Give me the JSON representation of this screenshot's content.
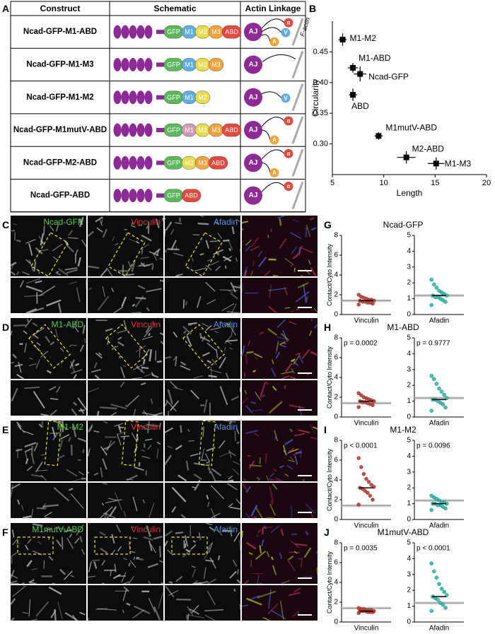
{
  "panels": [
    "A",
    "B",
    "C",
    "D",
    "E",
    "F",
    "G",
    "H",
    "I",
    "J"
  ],
  "table": {
    "headers": [
      "Construct",
      "Schematic",
      "Actin Linkage"
    ],
    "aj_label": "AJ",
    "f_actin_label": "F-actin",
    "rows": [
      {
        "construct": "Ncad-GFP-M1-ABD",
        "domains": [
          {
            "label": "GFP",
            "color": "#5cb85c"
          },
          {
            "label": "M1",
            "color": "#62aee0"
          },
          {
            "label": "M2",
            "color": "#e8dc4c"
          },
          {
            "label": "M3",
            "color": "#f2a33a"
          },
          {
            "label": "ABD",
            "color": "#e5483c"
          }
        ],
        "linkage": [
          {
            "label": "α",
            "color": "#e5483c"
          },
          {
            "label": "V",
            "color": "#62aee0"
          },
          {
            "label": "A",
            "color": "#f2a33a"
          }
        ]
      },
      {
        "construct": "Ncad-GFP-M1-M3",
        "domains": [
          {
            "label": "GFP",
            "color": "#5cb85c"
          },
          {
            "label": "M1",
            "color": "#62aee0"
          },
          {
            "label": "M2",
            "color": "#e8dc4c"
          },
          {
            "label": "M3",
            "color": "#f2a33a"
          }
        ],
        "linkage": []
      },
      {
        "construct": "Ncad-GFP-M1-M2",
        "domains": [
          {
            "label": "GFP",
            "color": "#5cb85c"
          },
          {
            "label": "M1",
            "color": "#62aee0"
          },
          {
            "label": "M2",
            "color": "#e8dc4c"
          }
        ],
        "linkage": [
          {
            "label": "V",
            "color": "#62aee0"
          }
        ]
      },
      {
        "construct": "Ncad-GFP-M1mutV-ABD",
        "domains": [
          {
            "label": "GFP",
            "color": "#5cb85c"
          },
          {
            "label": "M1",
            "color": "#d39ab8"
          },
          {
            "label": "M2",
            "color": "#e8dc4c"
          },
          {
            "label": "M3",
            "color": "#f2a33a"
          },
          {
            "label": "ABD",
            "color": "#e5483c"
          }
        ],
        "linkage": [
          {
            "label": "α",
            "color": "#e5483c"
          },
          {
            "label": "A",
            "color": "#f2a33a"
          }
        ]
      },
      {
        "construct": "Ncad-GFP-M2-ABD",
        "domains": [
          {
            "label": "GFP",
            "color": "#5cb85c"
          },
          {
            "label": "M2",
            "color": "#e8dc4c"
          },
          {
            "label": "M3",
            "color": "#f2a33a"
          },
          {
            "label": "ABD",
            "color": "#e5483c"
          }
        ],
        "linkage": [
          {
            "label": "α",
            "color": "#e5483c"
          },
          {
            "label": "A",
            "color": "#f2a33a"
          }
        ]
      },
      {
        "construct": "Ncad-GFP-ABD",
        "domains": [
          {
            "label": "GFP",
            "color": "#5cb85c"
          },
          {
            "label": "ABD",
            "color": "#e5483c"
          }
        ],
        "linkage": [
          {
            "label": "α",
            "color": "#e5483c"
          }
        ]
      }
    ]
  },
  "chart_data": {
    "type": "scatter",
    "xlabel": "Length",
    "ylabel": "Circularity",
    "labels": [
      "M1-M2",
      "M1-ABD",
      "Ncad-GFP",
      "ABD",
      "M1mutV-ABD",
      "M2-ABD",
      "M1-M3"
    ],
    "x": [
      6.0,
      7.0,
      7.7,
      7.0,
      9.5,
      12.2,
      15.1
    ],
    "y": [
      0.47,
      0.424,
      0.414,
      0.38,
      0.313,
      0.278,
      0.268
    ],
    "xerr": [
      0.4,
      0.5,
      0.6,
      0.4,
      0.4,
      0.9,
      0.8
    ],
    "yerr": [
      0.01,
      0.008,
      0.012,
      0.01,
      0.006,
      0.01,
      0.01
    ],
    "color": "#000000",
    "xlim": [
      5,
      20
    ],
    "ylim": [
      0.25,
      0.5
    ],
    "xticks": [
      5,
      10,
      15,
      20
    ],
    "yticks": [
      {
        "value": 0.3,
        "label": "0.30"
      },
      0.35,
      {
        "value": 0.4,
        "label": "0.40"
      },
      0.45
    ]
  },
  "micrographs": [
    {
      "channels": [
        "Ncad-GFP",
        "Vinculin",
        "Afadin"
      ]
    },
    {
      "channels": [
        "M1-ABD",
        "Vinculin",
        "Afadin"
      ]
    },
    {
      "channels": [
        "M1-M2",
        "Vinculin",
        "Afadin"
      ]
    },
    {
      "channels": [
        "M1mutV-ABD",
        "Vinculin",
        "Afadin"
      ]
    }
  ],
  "channel_colors": [
    "#4cd14c",
    "#e0303a",
    "#5a8ee8"
  ],
  "dot_plots": [
    {
      "title": "Ncad-GFP",
      "ylabel": "Contact/Cyto Intensity",
      "subplots": [
        {
          "label": "Vinculin",
          "color": "#c0392b",
          "ylim": [
            0,
            8
          ],
          "yticks": [
            0,
            2,
            4,
            6,
            8
          ],
          "median": 1.4,
          "reference": 1.4,
          "points": [
            1.0,
            1.1,
            1.2,
            1.2,
            1.3,
            1.3,
            1.4,
            1.4,
            1.5,
            1.5,
            1.6,
            1.7,
            1.8,
            2.0
          ]
        },
        {
          "label": "Afadin",
          "color": "#1fbfb0",
          "ylim": [
            0,
            5
          ],
          "yticks": [
            0,
            1,
            2,
            3,
            4,
            5
          ],
          "median": 1.2,
          "reference": 1.2,
          "points": [
            0.6,
            0.8,
            0.9,
            1.0,
            1.1,
            1.1,
            1.2,
            1.2,
            1.3,
            1.4,
            1.5,
            1.7,
            1.9,
            2.2
          ]
        }
      ]
    },
    {
      "title": "M1-ABD",
      "ylabel": "Contact/Cyto Intensity",
      "subplots": [
        {
          "label": "Vinculin",
          "p_value": "p = 0.0002",
          "color": "#c0392b",
          "ylim": [
            0,
            8
          ],
          "yticks": [
            0,
            2,
            4,
            6,
            8
          ],
          "median": 1.6,
          "reference": 1.4,
          "points": [
            1.0,
            1.2,
            1.3,
            1.4,
            1.5,
            1.5,
            1.6,
            1.6,
            1.7,
            1.8,
            1.9,
            2.0,
            2.2,
            2.4
          ]
        },
        {
          "label": "Afadin",
          "p_value": "p = 0.9777",
          "color": "#1fbfb0",
          "ylim": [
            0,
            5
          ],
          "yticks": [
            0,
            1,
            2,
            3,
            4,
            5
          ],
          "median": 1.1,
          "reference": 1.2,
          "points": [
            0.4,
            0.6,
            0.8,
            0.9,
            1.0,
            1.1,
            1.1,
            1.2,
            1.4,
            1.6,
            1.8,
            2.1,
            2.4,
            2.6
          ]
        }
      ]
    },
    {
      "title": "M1-M2",
      "ylabel": "Contact/Cyto Intensity",
      "subplots": [
        {
          "label": "Vinculin",
          "p_value": "p < 0.0001",
          "color": "#c0392b",
          "ylim": [
            0,
            8
          ],
          "yticks": [
            0,
            2,
            4,
            6,
            8
          ],
          "median": 3.2,
          "reference": 1.4,
          "points": [
            1.5,
            2.0,
            2.4,
            2.7,
            2.9,
            3.1,
            3.2,
            3.3,
            3.5,
            3.8,
            4.1,
            4.6,
            5.3,
            6.2
          ]
        },
        {
          "label": "Afadin",
          "p_value": "p = 0.0096",
          "color": "#1fbfb0",
          "ylim": [
            0,
            5
          ],
          "yticks": [
            0,
            1,
            2,
            3,
            4,
            5
          ],
          "median": 1.0,
          "reference": 1.2,
          "points": [
            0.6,
            0.7,
            0.8,
            0.9,
            0.9,
            1.0,
            1.0,
            1.0,
            1.1,
            1.1,
            1.2,
            1.3,
            1.4,
            1.5
          ]
        }
      ]
    },
    {
      "title": "M1mutV-ABD",
      "ylabel": "Contact/Cyto Intensity",
      "subplots": [
        {
          "label": "Vinculin",
          "p_value": "p = 0.0035",
          "color": "#c0392b",
          "ylim": [
            0,
            8
          ],
          "yticks": [
            0,
            2,
            4,
            6,
            8
          ],
          "median": 1.1,
          "reference": 1.4,
          "points": [
            0.9,
            1.0,
            1.0,
            1.0,
            1.1,
            1.1,
            1.1,
            1.1,
            1.2,
            1.2,
            1.2,
            1.3,
            1.3,
            1.4
          ]
        },
        {
          "label": "Afadin",
          "p_value": "p < 0.0001",
          "color": "#1fbfb0",
          "ylim": [
            0,
            5
          ],
          "yticks": [
            0,
            1,
            2,
            3,
            4,
            5
          ],
          "median": 1.6,
          "reference": 1.2,
          "points": [
            0.7,
            0.9,
            1.1,
            1.2,
            1.4,
            1.5,
            1.6,
            1.7,
            1.9,
            2.1,
            2.4,
            2.8,
            3.2,
            3.7
          ]
        }
      ]
    }
  ]
}
